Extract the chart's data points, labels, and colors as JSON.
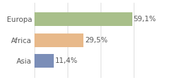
{
  "categories": [
    "Asia",
    "Africa",
    "Europa"
  ],
  "values": [
    11.4,
    29.5,
    59.1
  ],
  "labels": [
    "11,4%",
    "29,5%",
    "59,1%"
  ],
  "bar_colors": [
    "#7b8eb8",
    "#e8b98a",
    "#a8bf8a"
  ],
  "background_color": "#ffffff",
  "xlim": [
    0,
    75
  ],
  "bar_height": 0.65,
  "label_fontsize": 7.5,
  "tick_fontsize": 7.5,
  "tick_color": "#555555",
  "grid_color": "#d8d8d8",
  "label_color": "#555555"
}
